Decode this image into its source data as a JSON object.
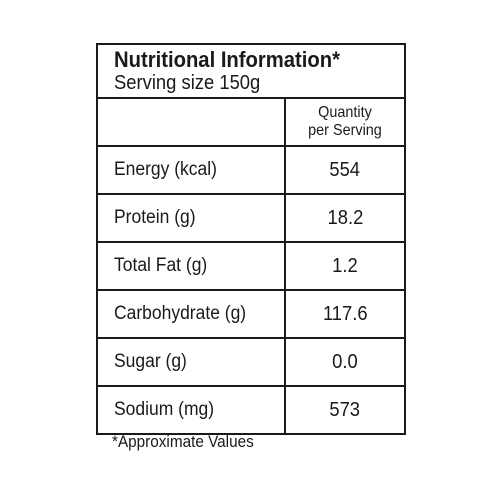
{
  "panel": {
    "title": "Nutritional Information*",
    "serving_size": "Serving size 150g",
    "column_header_line1": "Quantity",
    "column_header_line2": "per Serving"
  },
  "rows": [
    {
      "nutrient": "Energy (kcal)",
      "value": "554"
    },
    {
      "nutrient": "Protein (g)",
      "value": "18.2"
    },
    {
      "nutrient": "Total Fat (g)",
      "value": "1.2"
    },
    {
      "nutrient": "Carbohydrate (g)",
      "value": "117.6"
    },
    {
      "nutrient": "Sugar (g)",
      "value": "0.0"
    },
    {
      "nutrient": "Sodium (mg)",
      "value": "573"
    }
  ],
  "footnote": "*Approximate Values"
}
